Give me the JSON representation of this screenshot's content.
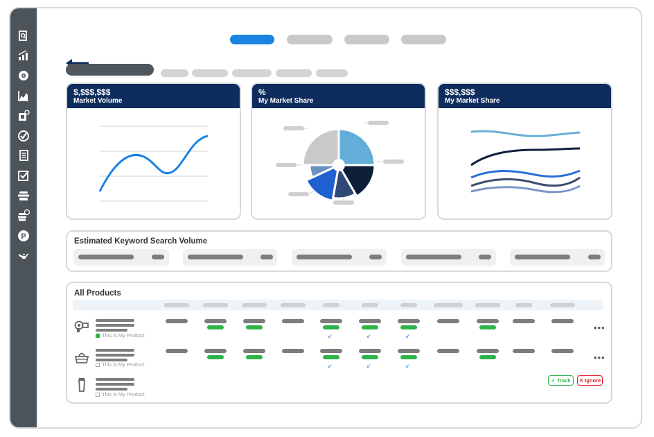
{
  "colors": {
    "accent": "#1a84e3",
    "header": "#0e2d5e",
    "sidebar": "#4c5459",
    "green": "#2eb34a",
    "red": "#e0202a"
  },
  "sidebar": {
    "icons": [
      "document-search-icon",
      "bar-chart-icon",
      "brain-gear-icon",
      "area-chart-icon",
      "product-add-icon",
      "check-circle-icon",
      "document-list-icon",
      "checkbox-icon",
      "stack-icon",
      "alert-stack-icon",
      "p-circle-icon",
      "genie-lamp-icon"
    ],
    "p_letter": "P"
  },
  "cards": [
    {
      "value": "$,$$$,$$$",
      "label": "Market Volume"
    },
    {
      "value": "%",
      "label": "My Market Share"
    },
    {
      "value": "$$$,$$$",
      "label": "My Market Share"
    }
  ],
  "keywords": {
    "title": "Estimated Keyword Search Volume"
  },
  "products": {
    "title": "All Products",
    "rows": [
      {
        "icon": "hair-dryer-icon",
        "tag": "This is My Product",
        "mine": true
      },
      {
        "icon": "handbag-icon",
        "tag": "This is My Product",
        "mine": false
      },
      {
        "icon": "tube-icon",
        "tag": "This is My Product",
        "mine": false
      }
    ],
    "more": "•••",
    "track_label": "✓ Track",
    "ignore_label": "✕ Ignore"
  }
}
